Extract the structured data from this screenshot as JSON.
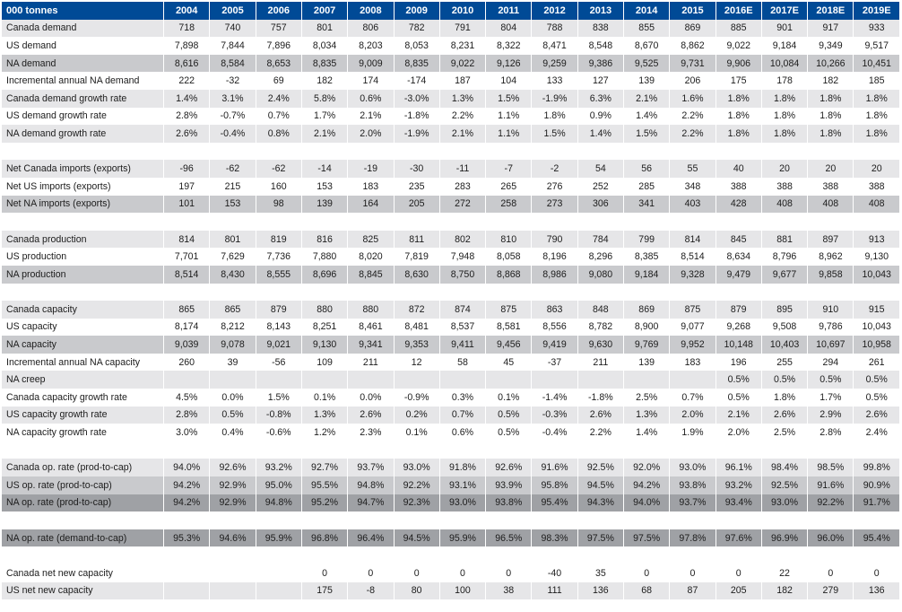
{
  "header": {
    "unit_label": "000 tonnes",
    "years": [
      "2004",
      "2005",
      "2006",
      "2007",
      "2008",
      "2009",
      "2010",
      "2011",
      "2012",
      "2013",
      "2014",
      "2015",
      "2016E",
      "2017E",
      "2018E",
      "2019E"
    ]
  },
  "colors": {
    "header_bg": "#004a96",
    "shade_light": "#e6e6e8",
    "shade_mid": "#c9cacd",
    "shade_dark": "#9fa1a5"
  },
  "rows": [
    {
      "label": "Canada demand",
      "shade": "light",
      "values": [
        "718",
        "740",
        "757",
        "801",
        "806",
        "782",
        "791",
        "804",
        "788",
        "838",
        "855",
        "869",
        "885",
        "901",
        "917",
        "933"
      ]
    },
    {
      "label": "US demand",
      "shade": "plain",
      "values": [
        "7,898",
        "7,844",
        "7,896",
        "8,034",
        "8,203",
        "8,053",
        "8,231",
        "8,322",
        "8,471",
        "8,548",
        "8,670",
        "8,862",
        "9,022",
        "9,184",
        "9,349",
        "9,517"
      ]
    },
    {
      "label": "NA demand",
      "shade": "mid",
      "values": [
        "8,616",
        "8,584",
        "8,653",
        "8,835",
        "9,009",
        "8,835",
        "9,022",
        "9,126",
        "9,259",
        "9,386",
        "9,525",
        "9,731",
        "9,906",
        "10,084",
        "10,266",
        "10,451"
      ]
    },
    {
      "label": "Incremental annual NA demand",
      "shade": "plain",
      "values": [
        "222",
        "-32",
        "69",
        "182",
        "174",
        "-174",
        "187",
        "104",
        "133",
        "127",
        "139",
        "206",
        "175",
        "178",
        "182",
        "185"
      ]
    },
    {
      "label": "Canada demand growth rate",
      "shade": "light",
      "values": [
        "1.4%",
        "3.1%",
        "2.4%",
        "5.8%",
        "0.6%",
        "-3.0%",
        "1.3%",
        "1.5%",
        "-1.9%",
        "6.3%",
        "2.1%",
        "1.6%",
        "1.8%",
        "1.8%",
        "1.8%",
        "1.8%"
      ]
    },
    {
      "label": "US demand growth rate",
      "shade": "plain",
      "values": [
        "2.8%",
        "-0.7%",
        "0.7%",
        "1.7%",
        "2.1%",
        "-1.8%",
        "2.2%",
        "1.1%",
        "1.8%",
        "0.9%",
        "1.4%",
        "2.2%",
        "1.8%",
        "1.8%",
        "1.8%",
        "1.8%"
      ]
    },
    {
      "label": "NA demand growth rate",
      "shade": "light",
      "values": [
        "2.6%",
        "-0.4%",
        "0.8%",
        "2.1%",
        "2.0%",
        "-1.9%",
        "2.1%",
        "1.1%",
        "1.5%",
        "1.4%",
        "1.5%",
        "2.2%",
        "1.8%",
        "1.8%",
        "1.8%",
        "1.8%"
      ]
    },
    {
      "label": "",
      "shade": "spacer",
      "values": [
        "",
        "",
        "",
        "",
        "",
        "",
        "",
        "",
        "",
        "",
        "",
        "",
        "",
        "",
        "",
        ""
      ]
    },
    {
      "label": "Net Canada imports (exports)",
      "shade": "light",
      "values": [
        "-96",
        "-62",
        "-62",
        "-14",
        "-19",
        "-30",
        "-11",
        "-7",
        "-2",
        "54",
        "56",
        "55",
        "40",
        "20",
        "20",
        "20"
      ]
    },
    {
      "label": "Net US imports (exports)",
      "shade": "plain",
      "values": [
        "197",
        "215",
        "160",
        "153",
        "183",
        "235",
        "283",
        "265",
        "276",
        "252",
        "285",
        "348",
        "388",
        "388",
        "388",
        "388"
      ]
    },
    {
      "label": "Net NA imports (exports)",
      "shade": "mid",
      "values": [
        "101",
        "153",
        "98",
        "139",
        "164",
        "205",
        "272",
        "258",
        "273",
        "306",
        "341",
        "403",
        "428",
        "408",
        "408",
        "408"
      ]
    },
    {
      "label": "",
      "shade": "spacer",
      "values": [
        "",
        "",
        "",
        "",
        "",
        "",
        "",
        "",
        "",
        "",
        "",
        "",
        "",
        "",
        "",
        ""
      ]
    },
    {
      "label": "Canada production",
      "shade": "light",
      "values": [
        "814",
        "801",
        "819",
        "816",
        "825",
        "811",
        "802",
        "810",
        "790",
        "784",
        "799",
        "814",
        "845",
        "881",
        "897",
        "913"
      ]
    },
    {
      "label": "US production",
      "shade": "plain",
      "values": [
        "7,701",
        "7,629",
        "7,736",
        "7,880",
        "8,020",
        "7,819",
        "7,948",
        "8,058",
        "8,196",
        "8,296",
        "8,385",
        "8,514",
        "8,634",
        "8,796",
        "8,962",
        "9,130"
      ]
    },
    {
      "label": "NA production",
      "shade": "mid",
      "values": [
        "8,514",
        "8,430",
        "8,555",
        "8,696",
        "8,845",
        "8,630",
        "8,750",
        "8,868",
        "8,986",
        "9,080",
        "9,184",
        "9,328",
        "9,479",
        "9,677",
        "9,858",
        "10,043"
      ]
    },
    {
      "label": "",
      "shade": "spacer",
      "values": [
        "",
        "",
        "",
        "",
        "",
        "",
        "",
        "",
        "",
        "",
        "",
        "",
        "",
        "",
        "",
        ""
      ]
    },
    {
      "label": "Canada capacity",
      "shade": "light",
      "values": [
        "865",
        "865",
        "879",
        "880",
        "880",
        "872",
        "874",
        "875",
        "863",
        "848",
        "869",
        "875",
        "879",
        "895",
        "910",
        "915"
      ]
    },
    {
      "label": "US capacity",
      "shade": "plain",
      "values": [
        "8,174",
        "8,212",
        "8,143",
        "8,251",
        "8,461",
        "8,481",
        "8,537",
        "8,581",
        "8,556",
        "8,782",
        "8,900",
        "9,077",
        "9,268",
        "9,508",
        "9,786",
        "10,043"
      ]
    },
    {
      "label": "NA capacity",
      "shade": "mid",
      "values": [
        "9,039",
        "9,078",
        "9,021",
        "9,130",
        "9,341",
        "9,353",
        "9,411",
        "9,456",
        "9,419",
        "9,630",
        "9,769",
        "9,952",
        "10,148",
        "10,403",
        "10,697",
        "10,958"
      ]
    },
    {
      "label": "Incremental annual NA capacity",
      "shade": "plain",
      "values": [
        "260",
        "39",
        "-56",
        "109",
        "211",
        "12",
        "58",
        "45",
        "-37",
        "211",
        "139",
        "183",
        "196",
        "255",
        "294",
        "261"
      ]
    },
    {
      "label": "NA creep",
      "shade": "light",
      "values": [
        "",
        "",
        "",
        "",
        "",
        "",
        "",
        "",
        "",
        "",
        "",
        "",
        "0.5%",
        "0.5%",
        "0.5%",
        "0.5%"
      ]
    },
    {
      "label": "Canada capacity growth rate",
      "shade": "plain",
      "values": [
        "4.5%",
        "0.0%",
        "1.5%",
        "0.1%",
        "0.0%",
        "-0.9%",
        "0.3%",
        "0.1%",
        "-1.4%",
        "-1.8%",
        "2.5%",
        "0.7%",
        "0.5%",
        "1.8%",
        "1.7%",
        "0.5%"
      ]
    },
    {
      "label": "US capacity growth rate",
      "shade": "light",
      "values": [
        "2.8%",
        "0.5%",
        "-0.8%",
        "1.3%",
        "2.6%",
        "0.2%",
        "0.7%",
        "0.5%",
        "-0.3%",
        "2.6%",
        "1.3%",
        "2.0%",
        "2.1%",
        "2.6%",
        "2.9%",
        "2.6%"
      ]
    },
    {
      "label": "NA capacity growth rate",
      "shade": "plain",
      "values": [
        "3.0%",
        "0.4%",
        "-0.6%",
        "1.2%",
        "2.3%",
        "0.1%",
        "0.6%",
        "0.5%",
        "-0.4%",
        "2.2%",
        "1.4%",
        "1.9%",
        "2.0%",
        "2.5%",
        "2.8%",
        "2.4%"
      ]
    },
    {
      "label": "",
      "shade": "spacer",
      "values": [
        "",
        "",
        "",
        "",
        "",
        "",
        "",
        "",
        "",
        "",
        "",
        "",
        "",
        "",
        "",
        ""
      ]
    },
    {
      "label": "Canada op. rate (prod-to-cap)",
      "shade": "light",
      "values": [
        "94.0%",
        "92.6%",
        "93.2%",
        "92.7%",
        "93.7%",
        "93.0%",
        "91.8%",
        "92.6%",
        "91.6%",
        "92.5%",
        "92.0%",
        "93.0%",
        "96.1%",
        "98.4%",
        "98.5%",
        "99.8%"
      ]
    },
    {
      "label": "US op. rate (prod-to-cap)",
      "shade": "mid",
      "values": [
        "94.2%",
        "92.9%",
        "95.0%",
        "95.5%",
        "94.8%",
        "92.2%",
        "93.1%",
        "93.9%",
        "95.8%",
        "94.5%",
        "94.2%",
        "93.8%",
        "93.2%",
        "92.5%",
        "91.6%",
        "90.9%"
      ]
    },
    {
      "label": "NA op. rate (prod-to-cap)",
      "shade": "dark",
      "values": [
        "94.2%",
        "92.9%",
        "94.8%",
        "95.2%",
        "94.7%",
        "92.3%",
        "93.0%",
        "93.8%",
        "95.4%",
        "94.3%",
        "94.0%",
        "93.7%",
        "93.4%",
        "93.0%",
        "92.2%",
        "91.7%"
      ]
    },
    {
      "label": "",
      "shade": "spacer",
      "values": [
        "",
        "",
        "",
        "",
        "",
        "",
        "",
        "",
        "",
        "",
        "",
        "",
        "",
        "",
        "",
        ""
      ]
    },
    {
      "label": "NA op. rate (demand-to-cap)",
      "shade": "dark",
      "values": [
        "95.3%",
        "94.6%",
        "95.9%",
        "96.8%",
        "96.4%",
        "94.5%",
        "95.9%",
        "96.5%",
        "98.3%",
        "97.5%",
        "97.5%",
        "97.8%",
        "97.6%",
        "96.9%",
        "96.0%",
        "95.4%"
      ]
    },
    {
      "label": "",
      "shade": "spacer",
      "values": [
        "",
        "",
        "",
        "",
        "",
        "",
        "",
        "",
        "",
        "",
        "",
        "",
        "",
        "",
        "",
        ""
      ]
    },
    {
      "label": "Canada net new capacity",
      "shade": "plain",
      "values": [
        "",
        "",
        "",
        "0",
        "0",
        "0",
        "0",
        "0",
        "-40",
        "35",
        "0",
        "0",
        "0",
        "22",
        "0",
        "0"
      ]
    },
    {
      "label": "US net new capacity",
      "shade": "light",
      "values": [
        "",
        "",
        "",
        "175",
        "-8",
        "80",
        "100",
        "38",
        "111",
        "136",
        "68",
        "87",
        "205",
        "182",
        "279",
        "136"
      ]
    }
  ]
}
